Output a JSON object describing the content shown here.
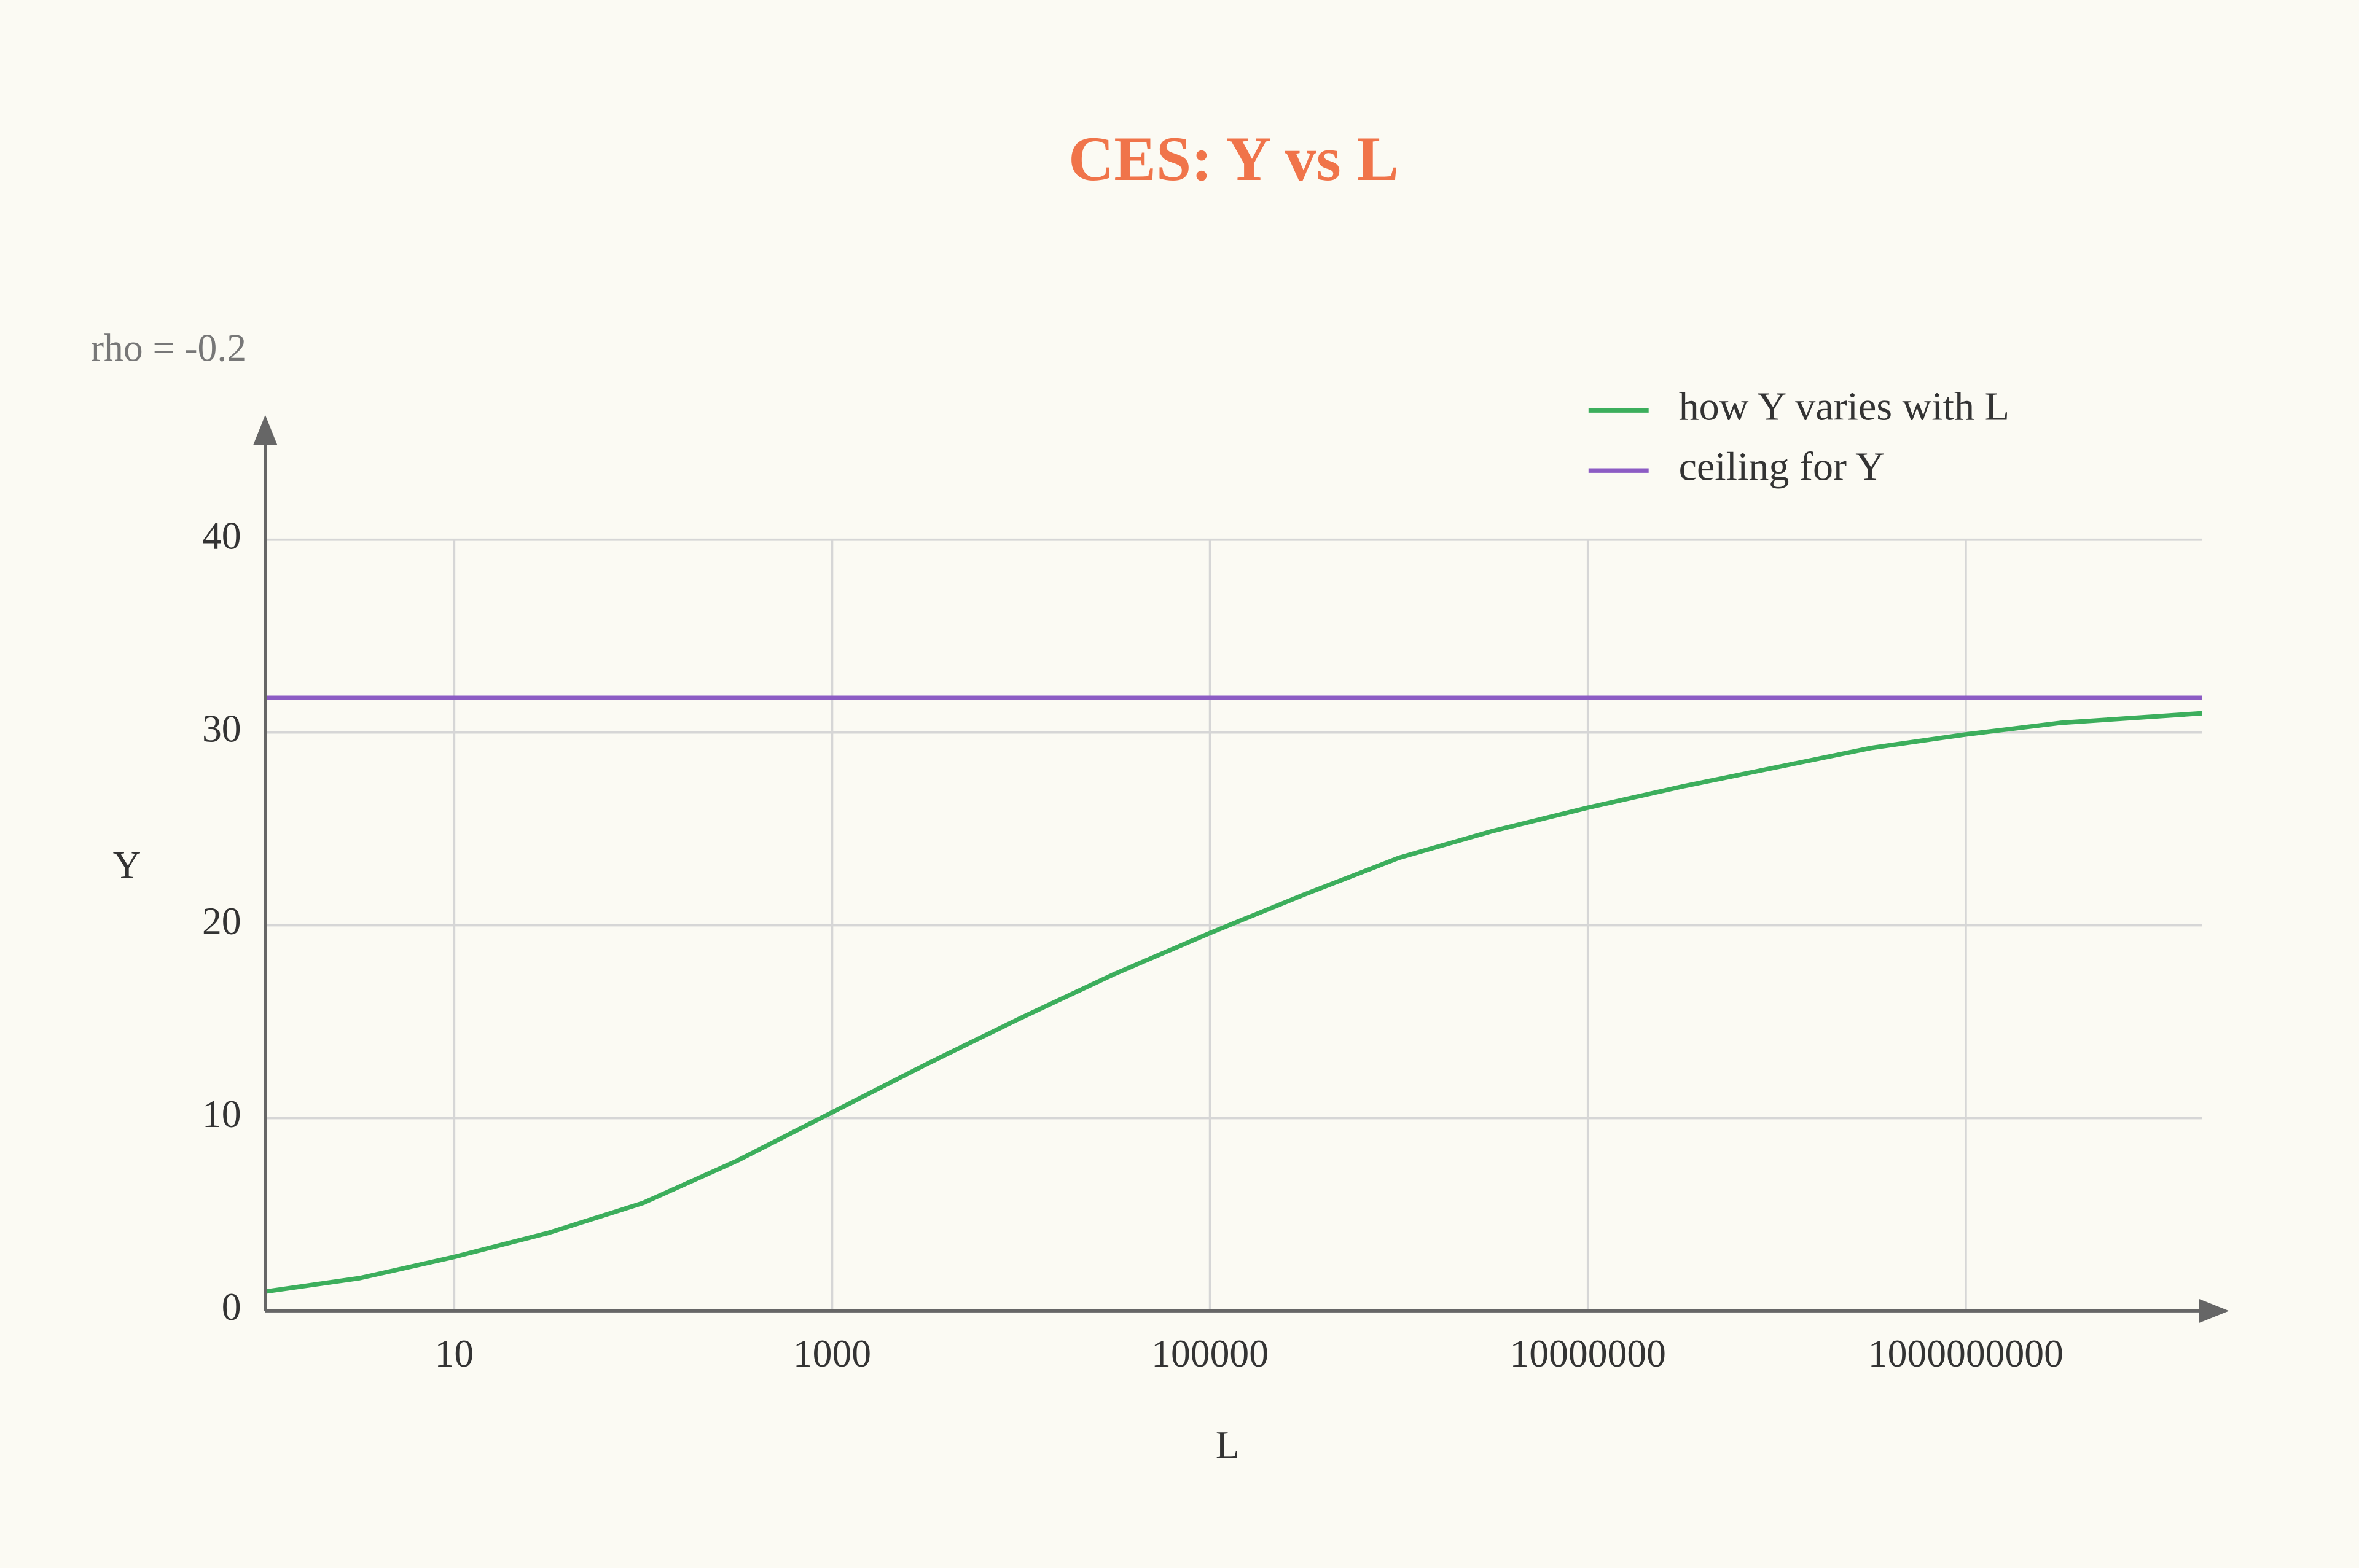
{
  "chart_data": {
    "type": "line",
    "title": "CES: Y vs L",
    "annotation": "rho = -0.2",
    "x_label": "L",
    "y_label": "Y",
    "xscale": "log",
    "grid": true,
    "legend": "top-right",
    "xlim": [
      1,
      17800000000
    ],
    "xticks": [
      10,
      1000,
      100000,
      10000000,
      1000000000
    ],
    "ylim": [
      0,
      40
    ],
    "yticks": [
      0,
      10,
      20,
      30,
      40
    ],
    "series": [
      {
        "name": "how Y varies with L",
        "color": "#3cae5c",
        "x": [
          1,
          3.16,
          10,
          31.6,
          100,
          316,
          1000,
          3162,
          10000,
          31623,
          100000,
          316228,
          1000000,
          3160000,
          10000000,
          31600000,
          100000000,
          316000000,
          1000000000,
          3160000000,
          17800000000
        ],
        "values": [
          1.0,
          1.7,
          2.8,
          4.05,
          5.6,
          7.8,
          10.3,
          12.8,
          15.2,
          17.5,
          19.6,
          21.6,
          23.5,
          24.9,
          26.1,
          27.2,
          28.2,
          29.2,
          29.9,
          30.5,
          31.0
        ]
      },
      {
        "name": "ceiling for Y",
        "color": "#8c5cc4",
        "x": [
          1,
          17800000000
        ],
        "values": [
          31.8,
          31.8
        ]
      }
    ]
  }
}
